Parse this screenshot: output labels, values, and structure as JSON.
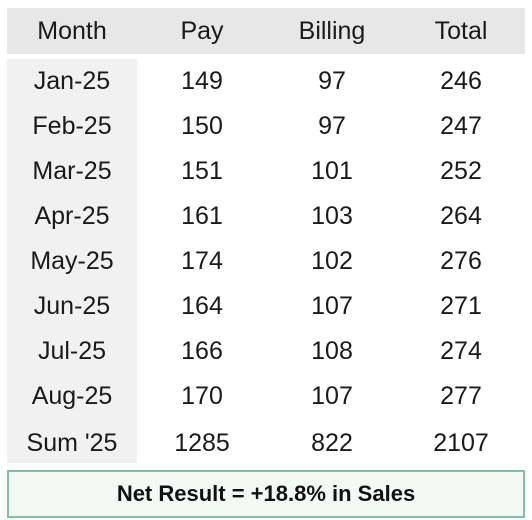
{
  "table": {
    "headers": [
      "Month",
      "Pay",
      "Billing",
      "Total"
    ],
    "rows": [
      {
        "month": "Jan-25",
        "pay": "149",
        "billing": "97",
        "total": "246"
      },
      {
        "month": "Feb-25",
        "pay": "150",
        "billing": "97",
        "total": "247"
      },
      {
        "month": "Mar-25",
        "pay": "151",
        "billing": "101",
        "total": "252"
      },
      {
        "month": "Apr-25",
        "pay": "161",
        "billing": "103",
        "total": "264"
      },
      {
        "month": "May-25",
        "pay": "174",
        "billing": "102",
        "total": "276"
      },
      {
        "month": "Jun-25",
        "pay": "164",
        "billing": "107",
        "total": "271"
      },
      {
        "month": "Jul-25",
        "pay": "166",
        "billing": "108",
        "total": "274"
      },
      {
        "month": "Aug-25",
        "pay": "170",
        "billing": "107",
        "total": "277"
      }
    ],
    "sum": {
      "month": "Sum '25",
      "pay": "1285",
      "billing": "822",
      "total": "2107"
    }
  },
  "summary": {
    "net_result": "Net Result = +18.8% in Sales"
  },
  "colors": {
    "header_bg": "#e7e7e7",
    "month_column_bg": "#f1f1f1",
    "summary_border": "#7cc4a0"
  }
}
